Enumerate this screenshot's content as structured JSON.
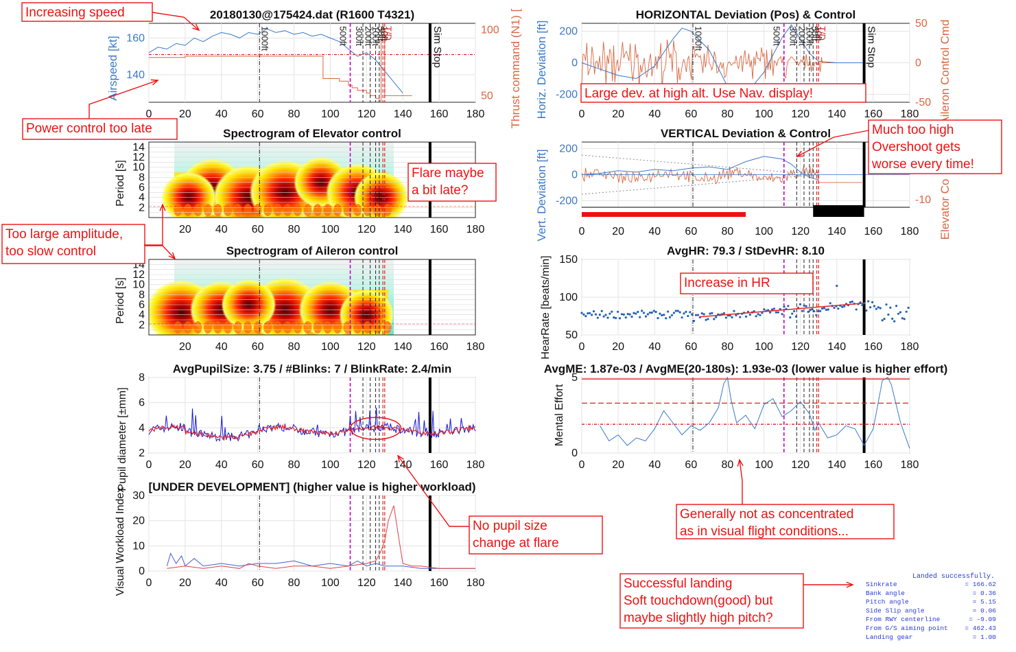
{
  "colors": {
    "blue": "#3a78c8",
    "orange": "#d9663f",
    "red": "#e11f1f",
    "magenta": "#c000c0",
    "annot": "#ee1111",
    "pupil_blue": "#1515d8",
    "pupil_red": "#e02020",
    "hr_dots": "#2060b8"
  },
  "markers": {
    "magenta_x": 111,
    "black_dash": [
      118,
      122,
      125,
      127
    ],
    "red_dash": [
      129,
      130
    ],
    "dashdot": [
      61
    ],
    "sim_stop": 155,
    "labels": [
      {
        "x": 63,
        "text": "1000ft"
      },
      {
        "x": 106,
        "text": "500ft"
      },
      {
        "x": 115,
        "text": "300ft"
      },
      {
        "x": 120,
        "text": "200ft"
      },
      {
        "x": 124,
        "text": "100ft"
      },
      {
        "x": 127,
        "text": "50ft"
      },
      {
        "x": 129,
        "text": "10ft"
      },
      {
        "x": 131,
        "text": "T/D"
      }
    ],
    "sim_stop_label": "Sim Stop"
  },
  "chart_data": [
    {
      "id": "speed",
      "type": "line",
      "title": "20180130@175424.dat  (R1600  T4321)",
      "ylabel": "Airspeed [kt]",
      "ylabel_right": "Thrust command (N1) [",
      "xlim": [
        0,
        180
      ],
      "ylim": [
        125,
        168
      ],
      "ylim_right": [
        45,
        105
      ],
      "xticks": [
        0,
        20,
        40,
        60,
        80,
        100,
        120,
        140,
        160,
        180
      ],
      "yticks": [
        140,
        160
      ],
      "yticks_right": [
        50,
        100
      ],
      "reference_y": 151,
      "series": [
        {
          "color_key": "blue",
          "axis": "left",
          "x": [
            0,
            5,
            10,
            15,
            20,
            25,
            30,
            35,
            40,
            45,
            50,
            55,
            60,
            65,
            70,
            75,
            80,
            85,
            90,
            95,
            100,
            105,
            110,
            115,
            120,
            125,
            130,
            135,
            140
          ],
          "y": [
            152,
            155,
            154,
            157,
            156,
            160,
            158,
            161,
            163,
            162,
            160,
            163,
            162,
            165,
            163,
            164,
            162,
            163,
            161,
            162,
            160,
            158,
            154,
            150,
            152,
            148,
            142,
            136,
            130
          ]
        },
        {
          "color_key": "orange",
          "axis": "right",
          "x": [
            0,
            10,
            20,
            40,
            60,
            80,
            90,
            95,
            96,
            100,
            105,
            110,
            112,
            115,
            120,
            122,
            125,
            127,
            128,
            130,
            135,
            140,
            145
          ],
          "y": [
            79,
            79,
            80,
            80,
            80,
            80,
            80,
            80,
            63,
            63,
            61,
            58,
            56,
            54,
            52,
            50,
            48,
            46,
            101,
            50,
            50,
            50,
            50
          ]
        }
      ]
    },
    {
      "id": "elev_spec",
      "type": "heatmap",
      "title": "Spectrogram of Elevator control",
      "ylabel": "Period [s]",
      "xlim": [
        0,
        180
      ],
      "ylim": [
        0,
        15
      ],
      "xticks": [
        20,
        40,
        60,
        80,
        100,
        120,
        140,
        160,
        180
      ],
      "yticks": [
        2,
        4,
        6,
        8,
        10,
        12,
        14
      ],
      "blobs": [
        {
          "x": 35,
          "y": 6,
          "level": 4
        },
        {
          "x": 55,
          "y": 4,
          "level": 5
        },
        {
          "x": 75,
          "y": 5,
          "level": 5
        },
        {
          "x": 95,
          "y": 7,
          "level": 3
        },
        {
          "x": 115,
          "y": 5,
          "level": 4
        },
        {
          "x": 22,
          "y": 4,
          "level": 3
        },
        {
          "x": 128,
          "y": 4,
          "level": 3
        }
      ]
    },
    {
      "id": "ail_spec",
      "type": "heatmap",
      "title": "Spectrogram of Aileron control",
      "ylabel": "Period [s]",
      "xlim": [
        0,
        180
      ],
      "ylim": [
        0,
        15
      ],
      "xticks": [
        20,
        40,
        60,
        80,
        100,
        120,
        140,
        160,
        180
      ],
      "yticks": [
        2,
        4,
        6,
        8,
        10,
        12,
        14
      ],
      "blobs": [
        {
          "x": 18,
          "y": 4.5,
          "level": 5
        },
        {
          "x": 40,
          "y": 5,
          "level": 4
        },
        {
          "x": 75,
          "y": 5,
          "level": 5
        },
        {
          "x": 100,
          "y": 5,
          "level": 4
        },
        {
          "x": 120,
          "y": 4,
          "level": 3
        },
        {
          "x": 55,
          "y": 6,
          "level": 3
        }
      ]
    },
    {
      "id": "pupil",
      "type": "line",
      "title": "AvgPupilSize: 3.75 / #Blinks: 7 / BlinkRate: 2.4/min",
      "ylabel": "Pupil diameter [±mm]",
      "xlim": [
        0,
        180
      ],
      "ylim": [
        2,
        8
      ],
      "xticks": [
        0,
        20,
        40,
        60,
        80,
        100,
        120,
        140,
        160,
        180
      ],
      "yticks": [
        2,
        4,
        6,
        8
      ],
      "base_level": 3.8
    },
    {
      "id": "workload",
      "type": "line",
      "title": "[UNDER DEVELOPMENT] (higher value is higher workload)",
      "ylabel": "Visual Workload Index",
      "xlim": [
        0,
        180
      ],
      "ylim": [
        0,
        30
      ],
      "xticks": [
        0,
        20,
        40,
        60,
        80,
        100,
        120,
        140,
        160,
        180
      ],
      "yticks": [
        0,
        10,
        20,
        30
      ],
      "series": [
        {
          "color_key": "blue",
          "x": [
            10,
            12,
            15,
            18,
            20,
            25,
            30,
            40,
            50,
            60,
            70,
            80,
            90,
            100,
            110,
            115,
            120,
            125,
            130,
            140,
            150,
            160,
            170,
            180
          ],
          "y": [
            2,
            7,
            3,
            6,
            2,
            5,
            2,
            3,
            2,
            3,
            3,
            4,
            2,
            3,
            2,
            4,
            2,
            3,
            2,
            2,
            1,
            1,
            1,
            1
          ]
        },
        {
          "color_key": "orange",
          "x": [
            10,
            20,
            30,
            40,
            50,
            55,
            60,
            70,
            80,
            90,
            100,
            110,
            120,
            125,
            128,
            130,
            132,
            135,
            138,
            140,
            145,
            150,
            160,
            170,
            180
          ],
          "y": [
            1,
            2,
            1,
            2,
            1,
            3,
            2,
            1,
            2,
            2,
            1,
            2,
            3,
            4,
            8,
            12,
            20,
            26,
            12,
            3,
            2,
            2,
            1,
            1,
            1
          ]
        }
      ]
    },
    {
      "id": "horiz",
      "type": "line",
      "title": "HORIZONTAL Deviation (Pos) & Control",
      "ylabel": "Horiz. Deviation [ft]",
      "ylabel_right": "Aileron Control Cmd",
      "xlim": [
        0,
        180
      ],
      "ylim": [
        -250,
        250
      ],
      "ylim_right": [
        -50,
        50
      ],
      "xticks": [
        0,
        20,
        40,
        60,
        80,
        100,
        120,
        140,
        160,
        180
      ],
      "yticks": [
        -200,
        0,
        200
      ],
      "yticks_right": [
        -50,
        0,
        50
      ],
      "series": [
        {
          "color_key": "blue",
          "axis": "left",
          "x": [
            0,
            10,
            20,
            30,
            40,
            50,
            55,
            60,
            70,
            80,
            90,
            100,
            110,
            115,
            120,
            125,
            130,
            140,
            150,
            155
          ],
          "y": [
            0,
            -40,
            -80,
            -100,
            -20,
            150,
            220,
            200,
            80,
            -150,
            -200,
            -60,
            160,
            240,
            150,
            60,
            10,
            0,
            0,
            0
          ]
        }
      ]
    },
    {
      "id": "vert",
      "type": "line",
      "title": "VERTICAL Deviation & Control",
      "ylabel": "Vert. Deviation [ft]",
      "ylabel_right": "Elevator Co",
      "xlim": [
        0,
        180
      ],
      "ylim": [
        -250,
        250
      ],
      "ylim_right": [
        -12,
        5
      ],
      "xticks": [
        0,
        20,
        40,
        60,
        80,
        100,
        120,
        140,
        160,
        180
      ],
      "yticks": [
        -200,
        0,
        200
      ],
      "yticks_right": [
        -10,
        0
      ],
      "series": [
        {
          "color_key": "blue",
          "axis": "left",
          "x": [
            0,
            10,
            20,
            30,
            40,
            50,
            60,
            70,
            80,
            90,
            100,
            110,
            115,
            120,
            125,
            130
          ],
          "y": [
            0,
            10,
            30,
            20,
            40,
            30,
            50,
            60,
            40,
            100,
            140,
            120,
            80,
            20,
            -20,
            -40
          ]
        }
      ]
    },
    {
      "id": "hr",
      "type": "scatter",
      "title": "AvgHR: 79.3 / StDevHR: 8.10",
      "ylabel": "HearRate [beats/min]",
      "xlim": [
        0,
        180
      ],
      "ylim": [
        50,
        150
      ],
      "xticks": [
        0,
        20,
        40,
        60,
        80,
        100,
        120,
        140,
        160,
        180
      ],
      "yticks": [
        50,
        100,
        150
      ],
      "trend": {
        "x": [
          65,
          155
        ],
        "y": [
          74,
          92
        ]
      },
      "outlier": {
        "x": 140,
        "y": 115
      }
    },
    {
      "id": "me",
      "type": "line",
      "title": "AvgME: 1.87e-03 / AvgME(20-180s): 1.93e-03  (lower value is higher effort)",
      "ylabel": "Mental Effort",
      "xlim": [
        0,
        180
      ],
      "ylim": [
        0,
        5
      ],
      "xticks": [
        0,
        20,
        40,
        60,
        80,
        100,
        120,
        140,
        160,
        180
      ],
      "yticks": [
        0,
        5
      ],
      "hlines": [
        4.9,
        3.3,
        1.9
      ],
      "series": [
        {
          "color_key": "blue",
          "x": [
            10,
            15,
            20,
            25,
            30,
            35,
            40,
            45,
            50,
            55,
            60,
            65,
            70,
            75,
            78,
            80,
            82,
            85,
            90,
            95,
            100,
            105,
            110,
            115,
            120,
            125,
            128,
            130,
            135,
            140,
            145,
            150,
            155,
            160,
            165,
            168,
            170,
            175,
            180
          ],
          "y": [
            1.8,
            0.8,
            1.2,
            0.5,
            1.0,
            0.8,
            1.6,
            2.8,
            2.0,
            1.2,
            1.8,
            1.5,
            2.0,
            3.0,
            4.6,
            5.0,
            3.5,
            2.0,
            2.5,
            1.6,
            3.2,
            3.6,
            2.4,
            2.8,
            3.4,
            2.6,
            1.5,
            2.0,
            1.0,
            1.2,
            1.8,
            1.6,
            0.5,
            1.6,
            4.8,
            5.0,
            4.5,
            2.0,
            0.3
          ]
        }
      ]
    }
  ],
  "annotations": [
    {
      "id": "increasing-speed",
      "text": [
        "Increasing speed"
      ]
    },
    {
      "id": "power-late",
      "text": [
        "Power control too late"
      ]
    },
    {
      "id": "flare-late",
      "text": [
        "Flare maybe",
        "a bit late?"
      ]
    },
    {
      "id": "amplitude",
      "text": [
        "Too large amplitude,",
        "too slow control"
      ]
    },
    {
      "id": "no-pupil",
      "text": [
        "No pupil size",
        "change at flare"
      ]
    },
    {
      "id": "large-dev",
      "text": [
        "Large dev. at high alt. Use Nav. display!"
      ]
    },
    {
      "id": "overshoot",
      "text": [
        "Much too high",
        "Overshoot gets",
        "worse every time!"
      ]
    },
    {
      "id": "hr-increase",
      "text": [
        "Increase in HR"
      ]
    },
    {
      "id": "concentrated",
      "text": [
        "Generally not as concentrated",
        "as in visual flight conditions..."
      ]
    },
    {
      "id": "landing",
      "text": [
        "Successful landing",
        "Soft touchdown(good) but",
        "maybe slightly high pitch?"
      ]
    }
  ],
  "landing_report": {
    "header": "Landed successfully.",
    "rows": [
      {
        "label": "Sinkrate",
        "value": "= 166.62"
      },
      {
        "label": "Bank angle",
        "value": "=   0.36"
      },
      {
        "label": "Pitch angle",
        "value": "=   5.15"
      },
      {
        "label": "Side Slip angle",
        "value": "=   0.06"
      },
      {
        "label": "From RWY centerline",
        "value": "=  -9.09"
      },
      {
        "label": "From G/S aiming point",
        "value": "= 462.43"
      },
      {
        "label": "Landing gear",
        "value": "=   1.00"
      }
    ]
  }
}
